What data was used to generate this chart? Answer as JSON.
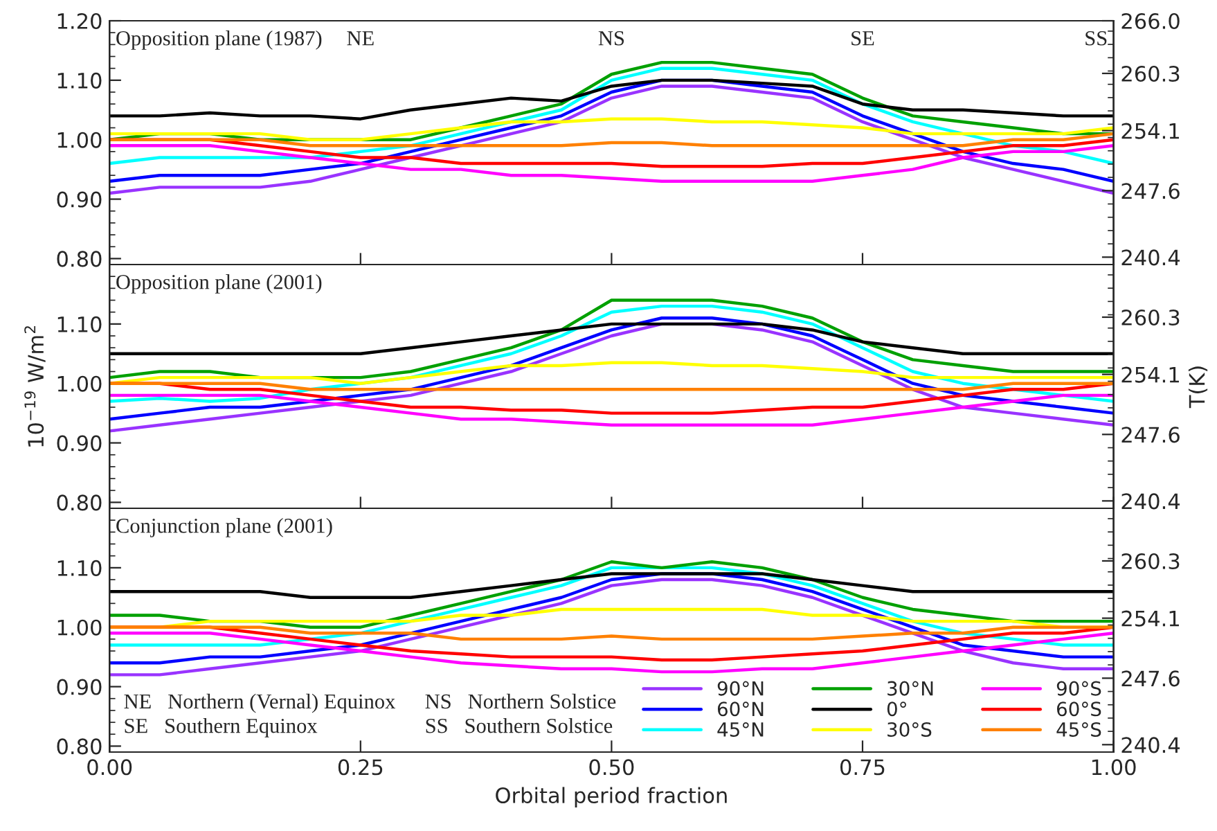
{
  "chart_data": [
    {
      "type": "line",
      "annotations": [
        "Opposition plane (1987)",
        "NE",
        "NS",
        "SE",
        "SS"
      ],
      "x": [
        0,
        0.05,
        0.1,
        0.15,
        0.2,
        0.25,
        0.3,
        0.35,
        0.4,
        0.45,
        0.5,
        0.55,
        0.6,
        0.65,
        0.7,
        0.75,
        0.8,
        0.85,
        0.9,
        0.95,
        1.0
      ],
      "xlim": [
        0,
        1
      ],
      "xticks": [
        0,
        0.25,
        0.5,
        0.75,
        1
      ],
      "ylim": [
        0.79,
        1.2
      ],
      "yticks": [
        {
          "value": 0.8,
          "label": "0.80"
        },
        {
          "value": 0.9,
          "label": "0.90"
        },
        {
          "value": 1.0,
          "label": "1.00"
        },
        {
          "value": 1.1,
          "label": "1.10"
        },
        {
          "value": 1.2,
          "label": "1.20"
        }
      ],
      "y2lim": [
        239.6,
        266.0
      ],
      "y2ticks": [
        240.4,
        247.6,
        254.1,
        260.3,
        {
          "value": 266.0,
          "label": "266.0"
        }
      ],
      "tick_labels": "y",
      "series": [
        {
          "color": "#9933ff",
          "values": [
            0.91,
            0.92,
            0.92,
            0.92,
            0.93,
            0.95,
            0.97,
            0.99,
            1.01,
            1.03,
            1.07,
            1.09,
            1.09,
            1.08,
            1.07,
            1.03,
            1.0,
            0.97,
            0.95,
            0.93,
            0.91
          ]
        },
        {
          "color": "#0000ff",
          "values": [
            0.93,
            0.94,
            0.94,
            0.94,
            0.95,
            0.96,
            0.98,
            1.0,
            1.02,
            1.04,
            1.08,
            1.1,
            1.1,
            1.09,
            1.08,
            1.04,
            1.01,
            0.98,
            0.96,
            0.95,
            0.93
          ]
        },
        {
          "color": "#00ffff",
          "values": [
            0.96,
            0.97,
            0.97,
            0.97,
            0.97,
            0.98,
            0.99,
            1.01,
            1.03,
            1.05,
            1.1,
            1.12,
            1.12,
            1.11,
            1.1,
            1.06,
            1.03,
            1.01,
            0.99,
            0.98,
            0.96
          ]
        },
        {
          "color": "#00a000",
          "values": [
            1.0,
            1.01,
            1.01,
            1.0,
            1.0,
            1.0,
            1.0,
            1.02,
            1.04,
            1.06,
            1.11,
            1.13,
            1.13,
            1.12,
            1.11,
            1.07,
            1.04,
            1.03,
            1.02,
            1.01,
            1.01
          ]
        },
        {
          "color": "#000000",
          "values": [
            1.04,
            1.04,
            1.045,
            1.04,
            1.04,
            1.035,
            1.05,
            1.06,
            1.07,
            1.065,
            1.09,
            1.1,
            1.1,
            1.095,
            1.09,
            1.06,
            1.05,
            1.05,
            1.045,
            1.04,
            1.04
          ]
        },
        {
          "color": "#ffff00",
          "values": [
            1.01,
            1.01,
            1.01,
            1.01,
            1.0,
            1.0,
            1.01,
            1.02,
            1.03,
            1.03,
            1.035,
            1.035,
            1.03,
            1.03,
            1.025,
            1.02,
            1.01,
            1.01,
            1.01,
            1.01,
            1.02
          ]
        },
        {
          "color": "#ff00ff",
          "values": [
            0.99,
            0.99,
            0.99,
            0.98,
            0.97,
            0.96,
            0.95,
            0.95,
            0.94,
            0.94,
            0.935,
            0.93,
            0.93,
            0.93,
            0.93,
            0.94,
            0.95,
            0.97,
            0.98,
            0.98,
            0.99
          ]
        },
        {
          "color": "#ff0000",
          "values": [
            1.0,
            1.0,
            1.0,
            0.99,
            0.98,
            0.97,
            0.97,
            0.96,
            0.96,
            0.96,
            0.96,
            0.955,
            0.955,
            0.955,
            0.96,
            0.96,
            0.97,
            0.98,
            0.99,
            0.99,
            1.0
          ]
        },
        {
          "color": "#ff8000",
          "values": [
            1.0,
            1.0,
            1.0,
            1.0,
            0.99,
            0.99,
            0.99,
            0.99,
            0.99,
            0.99,
            0.995,
            0.995,
            0.99,
            0.99,
            0.99,
            0.99,
            0.99,
            0.99,
            1.0,
            1.0,
            1.01
          ]
        }
      ]
    },
    {
      "type": "line",
      "annotations": [
        "Opposition plane (2001)"
      ],
      "ylabel": "10$^{−19}$ W/m$^{2}$",
      "y2label": "T(K)",
      "x": [
        0,
        0.05,
        0.1,
        0.15,
        0.2,
        0.25,
        0.3,
        0.35,
        0.4,
        0.45,
        0.5,
        0.55,
        0.6,
        0.65,
        0.7,
        0.75,
        0.8,
        0.85,
        0.9,
        0.95,
        1.0
      ],
      "xlim": [
        0,
        1
      ],
      "xticks": [
        0,
        0.25,
        0.5,
        0.75,
        1
      ],
      "ylim": [
        0.79,
        1.2
      ],
      "yticks": [
        {
          "value": 0.8,
          "label": "0.80"
        },
        {
          "value": 0.9,
          "label": "0.90"
        },
        {
          "value": 1.0,
          "label": "1.00"
        },
        {
          "value": 1.1,
          "label": "1.10"
        }
      ],
      "y2lim": [
        239.6,
        266.0
      ],
      "y2ticks": [
        240.4,
        247.6,
        254.1,
        260.3
      ],
      "tick_labels": "y",
      "series": [
        {
          "color": "#9933ff",
          "values": [
            0.92,
            0.93,
            0.94,
            0.95,
            0.96,
            0.97,
            0.98,
            1.0,
            1.02,
            1.05,
            1.08,
            1.1,
            1.1,
            1.09,
            1.07,
            1.03,
            0.99,
            0.96,
            0.95,
            0.94,
            0.93
          ]
        },
        {
          "color": "#0000ff",
          "values": [
            0.94,
            0.95,
            0.96,
            0.96,
            0.97,
            0.98,
            0.99,
            1.01,
            1.03,
            1.06,
            1.09,
            1.11,
            1.11,
            1.1,
            1.08,
            1.04,
            1.0,
            0.98,
            0.97,
            0.96,
            0.95
          ]
        },
        {
          "color": "#00ffff",
          "values": [
            0.97,
            0.975,
            0.97,
            0.975,
            0.99,
            1.0,
            1.01,
            1.03,
            1.05,
            1.08,
            1.12,
            1.13,
            1.13,
            1.12,
            1.1,
            1.06,
            1.02,
            1.0,
            0.99,
            0.98,
            0.97
          ]
        },
        {
          "color": "#00a000",
          "values": [
            1.01,
            1.02,
            1.02,
            1.01,
            1.01,
            1.01,
            1.02,
            1.04,
            1.06,
            1.09,
            1.14,
            1.14,
            1.14,
            1.13,
            1.11,
            1.07,
            1.04,
            1.03,
            1.02,
            1.02,
            1.02
          ]
        },
        {
          "color": "#000000",
          "values": [
            1.05,
            1.05,
            1.05,
            1.05,
            1.05,
            1.05,
            1.06,
            1.07,
            1.08,
            1.09,
            1.1,
            1.1,
            1.1,
            1.1,
            1.09,
            1.07,
            1.06,
            1.05,
            1.05,
            1.05,
            1.05
          ]
        },
        {
          "color": "#ffff00",
          "values": [
            1.0,
            1.01,
            1.01,
            1.01,
            1.01,
            1.0,
            1.01,
            1.02,
            1.03,
            1.03,
            1.035,
            1.035,
            1.03,
            1.03,
            1.025,
            1.02,
            1.01,
            1.01,
            1.01,
            1.01,
            1.01
          ]
        },
        {
          "color": "#ff00ff",
          "values": [
            0.98,
            0.98,
            0.98,
            0.98,
            0.97,
            0.96,
            0.95,
            0.94,
            0.94,
            0.935,
            0.93,
            0.93,
            0.93,
            0.93,
            0.93,
            0.94,
            0.95,
            0.96,
            0.97,
            0.98,
            0.98
          ]
        },
        {
          "color": "#ff0000",
          "values": [
            1.0,
            1.0,
            0.99,
            0.99,
            0.98,
            0.97,
            0.96,
            0.96,
            0.955,
            0.955,
            0.95,
            0.95,
            0.95,
            0.955,
            0.96,
            0.96,
            0.97,
            0.98,
            0.99,
            0.99,
            1.0
          ]
        },
        {
          "color": "#ff8000",
          "values": [
            1.0,
            1.0,
            1.0,
            1.0,
            0.99,
            0.99,
            0.99,
            0.99,
            0.99,
            0.99,
            0.99,
            0.99,
            0.99,
            0.99,
            0.99,
            0.99,
            0.99,
            0.99,
            1.0,
            1.0,
            1.0
          ]
        }
      ]
    },
    {
      "type": "line",
      "xlabel": "Orbital period fraction",
      "legend": "bottom right",
      "annotations": [
        "Conjunction plane (2001)",
        "NE   Northern (Vernal) Equinox",
        "NS   Northern Solstice",
        "SE   Southern Equinox",
        "SS   Southern Solstice"
      ],
      "x": [
        0,
        0.05,
        0.1,
        0.15,
        0.2,
        0.25,
        0.3,
        0.35,
        0.4,
        0.45,
        0.5,
        0.55,
        0.6,
        0.65,
        0.7,
        0.75,
        0.8,
        0.85,
        0.9,
        0.95,
        1.0
      ],
      "xlim": [
        0,
        1
      ],
      "xticks": [
        {
          "value": 0,
          "label": "0.00"
        },
        {
          "value": 0.25,
          "label": "0.25"
        },
        {
          "value": 0.5,
          "label": "0.50"
        },
        {
          "value": 0.75,
          "label": "0.75"
        },
        {
          "value": 1,
          "label": "1.00"
        }
      ],
      "ylim": [
        0.79,
        1.2
      ],
      "yticks": [
        {
          "value": 0.8,
          "label": "0.80"
        },
        {
          "value": 0.9,
          "label": "0.90"
        },
        {
          "value": 1.0,
          "label": "1.00"
        },
        {
          "value": 1.1,
          "label": "1.10"
        }
      ],
      "y2lim": [
        239.6,
        266.0
      ],
      "y2ticks": [
        240.4,
        247.6,
        254.1,
        260.3
      ],
      "series": [
        {
          "name": "90°N",
          "color": "#9933ff",
          "values": [
            0.92,
            0.92,
            0.93,
            0.94,
            0.95,
            0.96,
            0.98,
            1.0,
            1.02,
            1.04,
            1.07,
            1.08,
            1.08,
            1.07,
            1.05,
            1.02,
            0.99,
            0.96,
            0.94,
            0.93,
            0.93
          ]
        },
        {
          "name": "60°N",
          "color": "#0000ff",
          "values": [
            0.94,
            0.94,
            0.95,
            0.95,
            0.96,
            0.97,
            0.99,
            1.01,
            1.03,
            1.05,
            1.08,
            1.09,
            1.09,
            1.08,
            1.06,
            1.03,
            1.0,
            0.97,
            0.96,
            0.95,
            0.95
          ]
        },
        {
          "name": "45°N",
          "color": "#00ffff",
          "values": [
            0.97,
            0.97,
            0.97,
            0.97,
            0.98,
            0.99,
            1.01,
            1.03,
            1.05,
            1.07,
            1.1,
            1.1,
            1.1,
            1.09,
            1.07,
            1.04,
            1.01,
            0.99,
            0.98,
            0.97,
            0.97
          ]
        },
        {
          "name": "30°N",
          "color": "#00a000",
          "values": [
            1.02,
            1.02,
            1.01,
            1.01,
            1.0,
            1.0,
            1.02,
            1.04,
            1.06,
            1.08,
            1.11,
            1.1,
            1.11,
            1.1,
            1.08,
            1.05,
            1.03,
            1.02,
            1.01,
            1.01,
            1.01
          ]
        },
        {
          "name": "0°",
          "color": "#000000",
          "values": [
            1.06,
            1.06,
            1.06,
            1.06,
            1.05,
            1.05,
            1.05,
            1.06,
            1.07,
            1.08,
            1.09,
            1.09,
            1.09,
            1.09,
            1.08,
            1.07,
            1.06,
            1.06,
            1.06,
            1.06,
            1.06
          ]
        },
        {
          "name": "30°S",
          "color": "#ffff00",
          "values": [
            1.0,
            1.0,
            1.01,
            1.01,
            1.01,
            1.01,
            1.01,
            1.02,
            1.02,
            1.03,
            1.03,
            1.03,
            1.03,
            1.03,
            1.02,
            1.02,
            1.01,
            1.01,
            1.01,
            1.0,
            1.0
          ]
        },
        {
          "name": "90°S",
          "color": "#ff00ff",
          "values": [
            0.99,
            0.99,
            0.99,
            0.98,
            0.97,
            0.96,
            0.95,
            0.94,
            0.935,
            0.93,
            0.93,
            0.925,
            0.925,
            0.93,
            0.93,
            0.94,
            0.95,
            0.96,
            0.97,
            0.98,
            0.99
          ]
        },
        {
          "name": "60°S",
          "color": "#ff0000",
          "values": [
            1.0,
            1.0,
            1.0,
            0.99,
            0.98,
            0.97,
            0.96,
            0.955,
            0.95,
            0.95,
            0.95,
            0.945,
            0.945,
            0.95,
            0.955,
            0.96,
            0.97,
            0.98,
            0.99,
            0.99,
            1.0
          ]
        },
        {
          "name": "45°S",
          "color": "#ff8000",
          "values": [
            1.0,
            1.0,
            1.0,
            1.0,
            0.99,
            0.99,
            0.99,
            0.98,
            0.98,
            0.98,
            0.985,
            0.98,
            0.98,
            0.98,
            0.98,
            0.985,
            0.99,
            0.99,
            1.0,
            1.0,
            1.0
          ]
        }
      ]
    }
  ]
}
